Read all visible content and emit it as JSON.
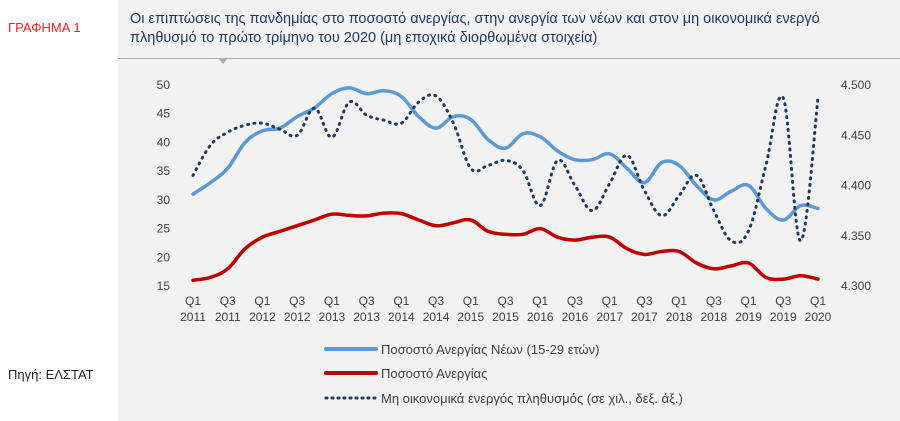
{
  "side": {
    "chart_tag": "ΓΡΑΦΗΜΑ 1",
    "source": "Πηγή: ΕΛΣΤΑΤ"
  },
  "colors": {
    "youth": "#5b9bd5",
    "total": "#c00000",
    "inactive": "#1f3864",
    "panel": "#f2f2f2",
    "title": "#1f3864"
  },
  "chart_data": {
    "type": "line",
    "title": "Οι επιπτώσεις της πανδημίας στο ποσοστό ανεργίας, στην ανεργία των νέων και στον μη οικονομικά ενεργό πληθυσμό το πρώτο τρίμηνο του 2020 (μη εποχικά διορθωμένα στοιχεία)",
    "categories": [
      "Q1 2011",
      "Q2 2011",
      "Q3 2011",
      "Q4 2011",
      "Q1 2012",
      "Q2 2012",
      "Q3 2012",
      "Q4 2012",
      "Q1 2013",
      "Q2 2013",
      "Q3 2013",
      "Q4 2013",
      "Q1 2014",
      "Q2 2014",
      "Q3 2014",
      "Q4 2014",
      "Q1 2015",
      "Q2 2015",
      "Q3 2015",
      "Q4 2015",
      "Q1 2016",
      "Q2 2016",
      "Q3 2016",
      "Q4 2016",
      "Q1 2017",
      "Q2 2017",
      "Q3 2017",
      "Q4 2017",
      "Q1 2018",
      "Q2 2018",
      "Q3 2018",
      "Q4 2018",
      "Q1 2019",
      "Q2 2019",
      "Q3 2019",
      "Q4 2019",
      "Q1 2020"
    ],
    "x_tick_labels": [
      {
        "index": 0,
        "q": "Q1",
        "y": "2011"
      },
      {
        "index": 2,
        "q": "Q3",
        "y": "2011"
      },
      {
        "index": 4,
        "q": "Q1",
        "y": "2012"
      },
      {
        "index": 6,
        "q": "Q3",
        "y": "2012"
      },
      {
        "index": 8,
        "q": "Q1",
        "y": "2013"
      },
      {
        "index": 10,
        "q": "Q3",
        "y": "2013"
      },
      {
        "index": 12,
        "q": "Q1",
        "y": "2014"
      },
      {
        "index": 14,
        "q": "Q3",
        "y": "2014"
      },
      {
        "index": 16,
        "q": "Q1",
        "y": "2015"
      },
      {
        "index": 18,
        "q": "Q3",
        "y": "2015"
      },
      {
        "index": 20,
        "q": "Q1",
        "y": "2016"
      },
      {
        "index": 22,
        "q": "Q3",
        "y": "2016"
      },
      {
        "index": 24,
        "q": "Q1",
        "y": "2017"
      },
      {
        "index": 26,
        "q": "Q3",
        "y": "2017"
      },
      {
        "index": 28,
        "q": "Q1",
        "y": "2018"
      },
      {
        "index": 30,
        "q": "Q3",
        "y": "2018"
      },
      {
        "index": 32,
        "q": "Q1",
        "y": "2019"
      },
      {
        "index": 34,
        "q": "Q3",
        "y": "2019"
      },
      {
        "index": 36,
        "q": "Q1",
        "y": "2020"
      }
    ],
    "y_left": {
      "min": 15,
      "max": 50,
      "ticks": [
        15,
        20,
        25,
        30,
        35,
        40,
        45,
        50
      ]
    },
    "y_right": {
      "min": 4300,
      "max": 4500,
      "ticks": [
        "4.300",
        "4.350",
        "4.400",
        "4.450",
        "4.500"
      ]
    },
    "grid": false,
    "series": [
      {
        "name": "Ποσοστό Ανεργίας Νέων (15-29 ετών)",
        "axis": "left",
        "style": "solid",
        "color": "#5b9bd5",
        "values": [
          31.0,
          33.0,
          35.5,
          40.0,
          42.0,
          42.5,
          44.5,
          46.0,
          48.5,
          49.5,
          48.5,
          49.0,
          48.0,
          44.5,
          42.5,
          44.5,
          44.0,
          40.5,
          39.0,
          41.5,
          41.0,
          38.5,
          37.0,
          37.0,
          38.0,
          35.5,
          33.0,
          36.5,
          36.0,
          32.5,
          30.0,
          31.5,
          32.5,
          28.5,
          26.5,
          29.0,
          28.5
        ]
      },
      {
        "name": "Ποσοστό Ανεργίας",
        "axis": "left",
        "style": "solid",
        "color": "#c00000",
        "values": [
          16.0,
          16.5,
          18.0,
          21.5,
          23.5,
          24.5,
          25.5,
          26.5,
          27.5,
          27.3,
          27.2,
          27.7,
          27.6,
          26.5,
          25.5,
          26.0,
          26.5,
          24.5,
          24.0,
          24.0,
          25.0,
          23.5,
          23.0,
          23.5,
          23.5,
          21.5,
          20.5,
          21.0,
          21.0,
          19.0,
          18.0,
          18.5,
          19.0,
          16.5,
          16.2,
          16.8,
          16.2
        ]
      },
      {
        "name": "Μη οικονομικά ενεργός πληθυσμός (σε χιλ., δεξ. άξ.)",
        "axis": "right",
        "style": "dotted",
        "color": "#1f3864",
        "values": [
          4410,
          4440,
          4453,
          4460,
          4462,
          4456,
          4450,
          4477,
          4448,
          4483,
          4470,
          4465,
          4462,
          4483,
          4489,
          4462,
          4417,
          4420,
          4425,
          4415,
          4380,
          4425,
          4400,
          4375,
          4402,
          4430,
          4395,
          4370,
          4390,
          4410,
          4375,
          4345,
          4355,
          4420,
          4487,
          4345,
          4487
        ]
      }
    ]
  }
}
